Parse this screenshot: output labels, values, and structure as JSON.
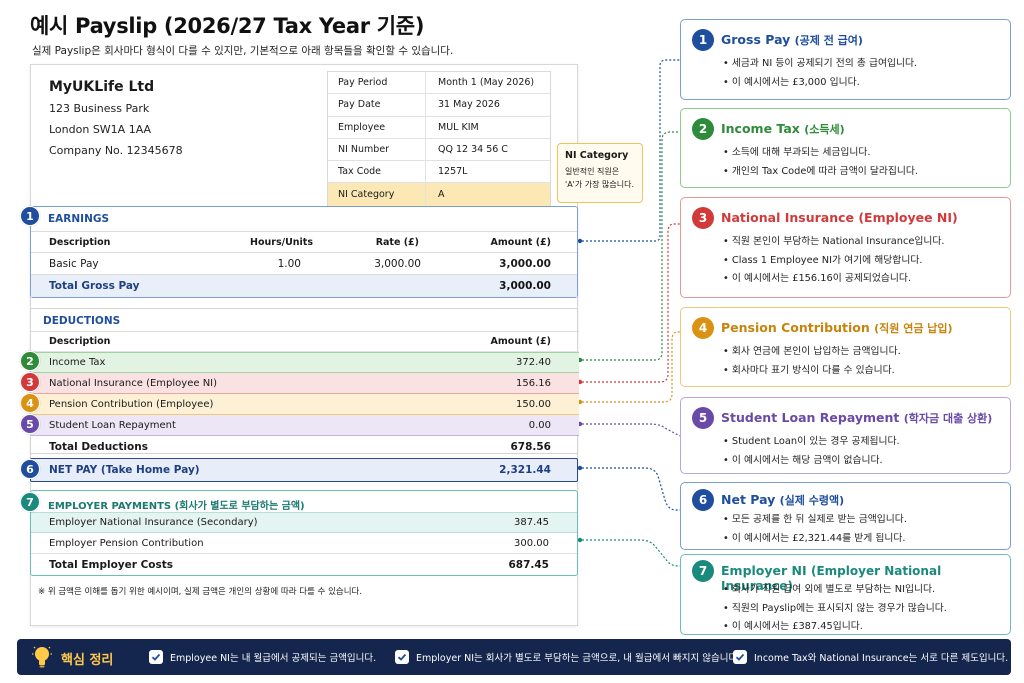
{
  "title": "예시 Payslip (2026/27 Tax Year 기준)",
  "subtitle": "실제 Payslip은 회사마다 형식이 다를 수 있지만, 기본적으로 아래 항목들을 확인할 수 있습니다.",
  "company": {
    "name": "MyUKLife Ltd",
    "address1": "123 Business Park",
    "address2": "London SW1A 1AA",
    "company_no": "Company No. 12345678"
  },
  "info": [
    {
      "label": "Pay Period",
      "value": "Month 1 (May 2026)"
    },
    {
      "label": "Pay Date",
      "value": "31 May 2026"
    },
    {
      "label": "Employee",
      "value": "MUL KIM"
    },
    {
      "label": "NI Number",
      "value": "QQ 12 34 56 C"
    },
    {
      "label": "Tax Code",
      "value": "1257L"
    },
    {
      "label": "NI Category",
      "value": "A"
    }
  ],
  "ni_callout": {
    "title": "NI Category",
    "line1": "일반적인 직원은",
    "line2": "'A'가 가장 많습니다."
  },
  "earnings": {
    "badge": "1",
    "title": "EARNINGS",
    "headers": {
      "description": "Description",
      "hours": "Hours/Units",
      "rate": "Rate (£)",
      "amount": "Amount (£)"
    },
    "row": {
      "description": "Basic Pay",
      "hours": "1.00",
      "rate": "3,000.00",
      "amount": "3,000.00"
    },
    "total_label": "Total Gross Pay",
    "total_amount": "3,000.00"
  },
  "deductions": {
    "title": "DEDUCTIONS",
    "headers": {
      "description": "Description",
      "amount": "Amount (£)"
    },
    "rows": [
      {
        "badge": "2",
        "label": "Income Tax",
        "amount": "372.40"
      },
      {
        "badge": "3",
        "label": "National Insurance (Employee NI)",
        "amount": "156.16"
      },
      {
        "badge": "4",
        "label": "Pension Contribution (Employee)",
        "amount": "150.00"
      },
      {
        "badge": "5",
        "label": "Student Loan Repayment",
        "amount": "0.00"
      }
    ],
    "total_label": "Total Deductions",
    "total_amount": "678.56"
  },
  "net_pay": {
    "badge": "6",
    "label": "NET PAY (Take Home Pay)",
    "amount": "2,321.44"
  },
  "employer": {
    "badge": "7",
    "title": "EMPLOYER PAYMENTS (회사가 별도로 부담하는 금액)",
    "rows": [
      {
        "label": "Employer National Insurance (Secondary)",
        "amount": "387.45"
      },
      {
        "label": "Employer Pension Contribution",
        "amount": "300.00"
      }
    ],
    "total_label": "Total Employer Costs",
    "total_amount": "687.45"
  },
  "note": "※ 위 금액은 이해를 돕기 위한 예시이며, 실제 금액은 개인의 상황에 따라 다를 수 있습니다.",
  "explanations": [
    {
      "badge": "1",
      "title": "Gross Pay",
      "title_ko": "(공제 전 급여)",
      "color": "#1f4e9e",
      "bullets": [
        "세금과 NI 등이 공제되기 전의 총 급여입니다.",
        "이 예시에서는 £3,000 입니다."
      ]
    },
    {
      "badge": "2",
      "title": "Income Tax",
      "title_ko": "(소득세)",
      "color": "#2e8b3a",
      "bullets": [
        "소득에 대해 부과되는 세금입니다.",
        "개인의 Tax Code에 따라 금액이 달라집니다."
      ]
    },
    {
      "badge": "3",
      "title": "National Insurance (Employee NI)",
      "title_ko": "",
      "color": "#d23a3a",
      "bullets": [
        "직원 본인이 부담하는 National Insurance입니다.",
        "Class 1 Employee NI가 여기에 해당합니다.",
        "이 예시에서는 £156.16이 공제되었습니다."
      ]
    },
    {
      "badge": "4",
      "title": "Pension Contribution",
      "title_ko": "(직원 연금 납입)",
      "color": "#d99212",
      "bullets": [
        "회사 연금에 본인이 납입하는 금액입니다.",
        "회사마다 표기 방식이 다를 수 있습니다."
      ]
    },
    {
      "badge": "5",
      "title": "Student Loan Repayment",
      "title_ko": "(학자금 대출 상환)",
      "color": "#6a4aa8",
      "bullets": [
        "Student Loan이 있는 경우 공제됩니다.",
        "이 예시에서는 해당 금액이 없습니다."
      ]
    },
    {
      "badge": "6",
      "title": "Net Pay",
      "title_ko": "(실제 수령액)",
      "color": "#1f4e9e",
      "bullets": [
        "모든 공제를 한 뒤 실제로 받는 금액입니다.",
        "이 예시에서는 £2,321.44를 받게 됩니다."
      ]
    },
    {
      "badge": "7",
      "title": "Employer NI",
      "title_ko": "(Employer National Insurance)",
      "color": "#1a8a7d",
      "bullets": [
        "회사가 직원 급여 외에 별도로 부담하는 NI입니다.",
        "직원의 Payslip에는 표시되지 않는 경우가 많습니다.",
        "이 예시에서는 £387.45입니다."
      ]
    }
  ],
  "summary": {
    "title": "핵심 정리",
    "items": [
      "Employee NI는 내 월급에서 공제되는 금액입니다.",
      "Employer NI는 회사가 별도로 부담하는 금액으로, 내 월급에서 빠지지 않습니다.",
      "Income Tax와 National Insurance는 서로 다른 제도입니다."
    ]
  },
  "colors": {
    "blue": "#1f4e9e",
    "green": "#2e8b3a",
    "red": "#d23a3a",
    "orange": "#d99212",
    "purple": "#6a4aa8",
    "teal": "#1a8a7d",
    "navy": "#14264d",
    "yellow": "#ffc94a"
  },
  "icons": {
    "bulb": "lightbulb-icon",
    "check": "check-icon"
  }
}
